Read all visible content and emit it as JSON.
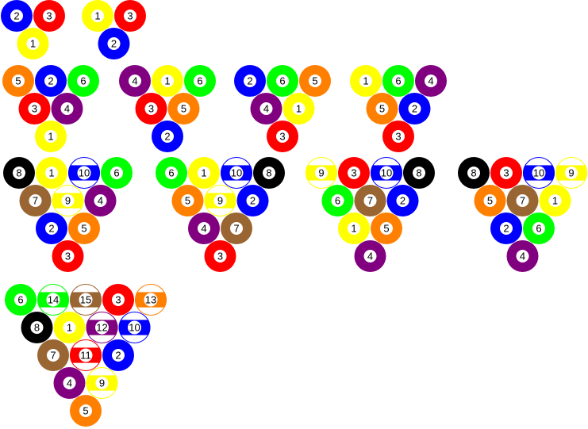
{
  "colors": {
    "1": "#ffff00",
    "2": "#0000ff",
    "3": "#ff0000",
    "4": "#800080",
    "5": "#ff8000",
    "6": "#00ff00",
    "7": "#996633",
    "8": "#000000",
    "9": "#ffff00",
    "10": "#0000ff",
    "11": "#ff0000",
    "12": "#800080",
    "13": "#ff8000",
    "14": "#00ff00",
    "15": "#996633"
  },
  "racks": [
    {
      "name": "rack-3-a",
      "rows": [
        [
          "2",
          "3"
        ],
        [
          "1"
        ]
      ]
    },
    {
      "name": "rack-3-b",
      "rows": [
        [
          "1",
          "3"
        ],
        [
          "2"
        ]
      ]
    },
    {
      "name": "rack-6-a",
      "rows": [
        [
          "5",
          "2",
          "6"
        ],
        [
          "3",
          "4"
        ],
        [
          "1"
        ]
      ]
    },
    {
      "name": "rack-6-b",
      "rows": [
        [
          "4",
          "1",
          "6"
        ],
        [
          "3",
          "5"
        ],
        [
          "2"
        ]
      ]
    },
    {
      "name": "rack-6-c",
      "rows": [
        [
          "2",
          "6",
          "5"
        ],
        [
          "4",
          "1"
        ],
        [
          "3"
        ]
      ]
    },
    {
      "name": "rack-6-d",
      "rows": [
        [
          "1",
          "6",
          "4"
        ],
        [
          "5",
          "2"
        ],
        [
          "3"
        ]
      ]
    },
    {
      "name": "rack-10-a",
      "rows": [
        [
          "8",
          "1",
          "10",
          "6"
        ],
        [
          "7",
          "9",
          "4"
        ],
        [
          "2",
          "5"
        ],
        [
          "3"
        ]
      ]
    },
    {
      "name": "rack-10-b",
      "rows": [
        [
          "6",
          "1",
          "10",
          "8"
        ],
        [
          "5",
          "9",
          "2"
        ],
        [
          "4",
          "7"
        ],
        [
          "3"
        ]
      ]
    },
    {
      "name": "rack-10-c",
      "rows": [
        [
          "9",
          "3",
          "10",
          "8"
        ],
        [
          "6",
          "7",
          "2"
        ],
        [
          "1",
          "5"
        ],
        [
          "4"
        ]
      ]
    },
    {
      "name": "rack-10-d",
      "rows": [
        [
          "8",
          "3",
          "10",
          "9"
        ],
        [
          "5",
          "7",
          "1"
        ],
        [
          "2",
          "6"
        ],
        [
          "4"
        ]
      ]
    },
    {
      "name": "rack-15",
      "rows": [
        [
          "6",
          "14",
          "15",
          "3",
          "13"
        ],
        [
          "8",
          "1",
          "12",
          "10"
        ],
        [
          "7",
          "11",
          "2"
        ],
        [
          "4",
          "9"
        ],
        [
          "5"
        ]
      ]
    }
  ]
}
